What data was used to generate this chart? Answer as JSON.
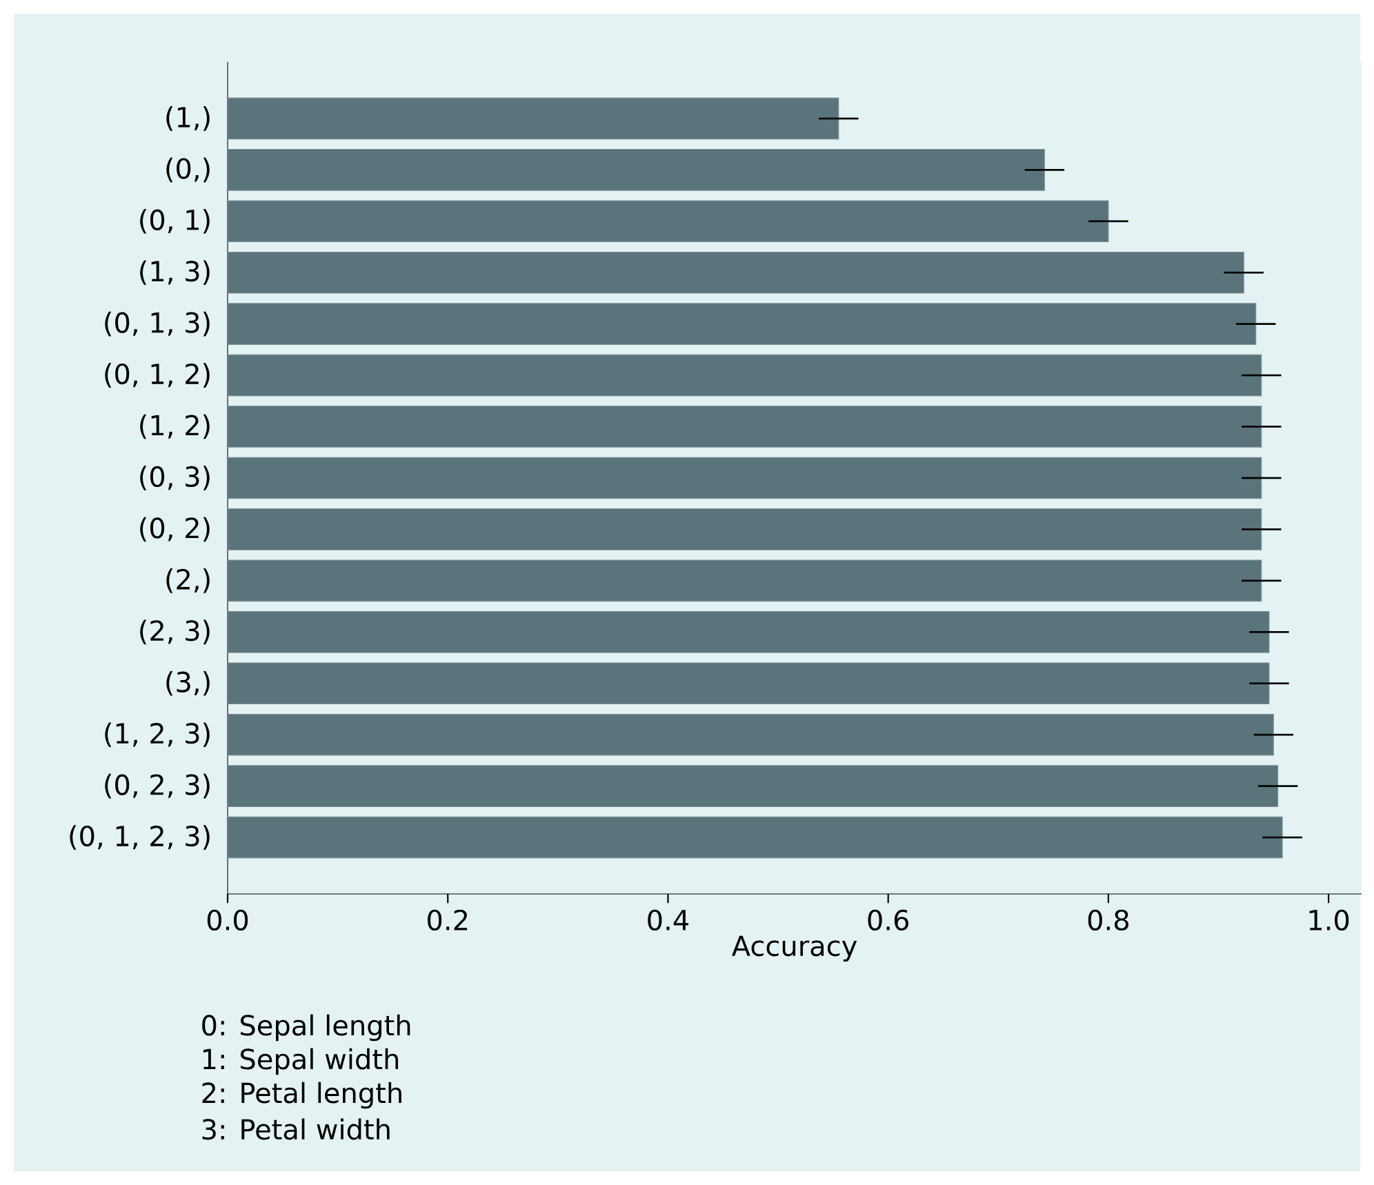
{
  "chart_data": {
    "type": "bar",
    "orientation": "horizontal",
    "color": "#5a747b",
    "categories": [
      "(1,)",
      "(0,)",
      "(0, 1)",
      "(1, 3)",
      "(0, 1, 3)",
      "(0, 1, 2)",
      "(1, 2)",
      "(0, 3)",
      "(0, 2)",
      "(2,)",
      "(2, 3)",
      "(3,)",
      "(1, 2, 3)",
      "(0, 2, 3)",
      "(0, 1, 2, 3)"
    ],
    "values": [
      0.555,
      0.742,
      0.8,
      0.923,
      0.934,
      0.939,
      0.939,
      0.939,
      0.939,
      0.939,
      0.946,
      0.946,
      0.95,
      0.954,
      0.958
    ],
    "errors": [
      0.018,
      0.018,
      0.018,
      0.018,
      0.018,
      0.018,
      0.018,
      0.018,
      0.018,
      0.018,
      0.018,
      0.018,
      0.018,
      0.018,
      0.018
    ],
    "xlim": [
      0,
      1.03
    ],
    "xticks": [
      {
        "value": 0,
        "label": "0.0"
      },
      {
        "value": 0.2,
        "label": "0.2"
      },
      {
        "value": 0.4,
        "label": "0.4"
      },
      {
        "value": 0.6,
        "label": "0.6"
      },
      {
        "value": 0.8,
        "label": "0.8"
      },
      {
        "value": 1.0,
        "label": "1.0"
      }
    ],
    "xlabel": "Accuracy",
    "annotations": [
      "0: Sepal length",
      "1: Sepal width",
      "2: Petal length",
      "3: Petal width"
    ]
  }
}
